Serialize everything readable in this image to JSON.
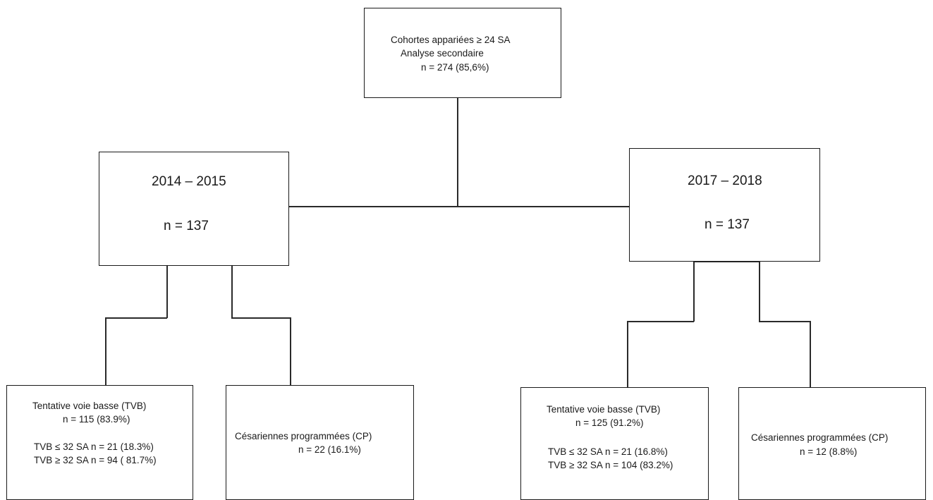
{
  "root": {
    "line1": "Cohortes appariées ≥ 24 SA",
    "line2": "Analyse secondaire",
    "line3": "n = 274 (85,6%)"
  },
  "left_cohort": {
    "period": "2014 – 2015",
    "n": "n = 137"
  },
  "right_cohort": {
    "period": "2017 – 2018",
    "n": "n = 137"
  },
  "left_tvb": {
    "title": "Tentative voie basse (TVB)",
    "n": "n = 115 (83.9%)",
    "le32": "TVB ≤ 32 SA n = 21 (18.3%)",
    "ge32": "TVB ≥ 32 SA n = 94 ( 81.7%)"
  },
  "left_cp": {
    "title": "Césariennes programmées (CP)",
    "n": "n = 22 (16.1%)"
  },
  "right_tvb": {
    "title": "Tentative voie basse (TVB)",
    "n": "n = 125 (91.2%)",
    "le32": "TVB ≤ 32 SA n = 21 (16.8%)",
    "ge32": "TVB ≥ 32 SA n = 104 (83.2%)"
  },
  "right_cp": {
    "title": "Césariennes programmées (CP)",
    "n": "n = 12 (8.8%)"
  }
}
